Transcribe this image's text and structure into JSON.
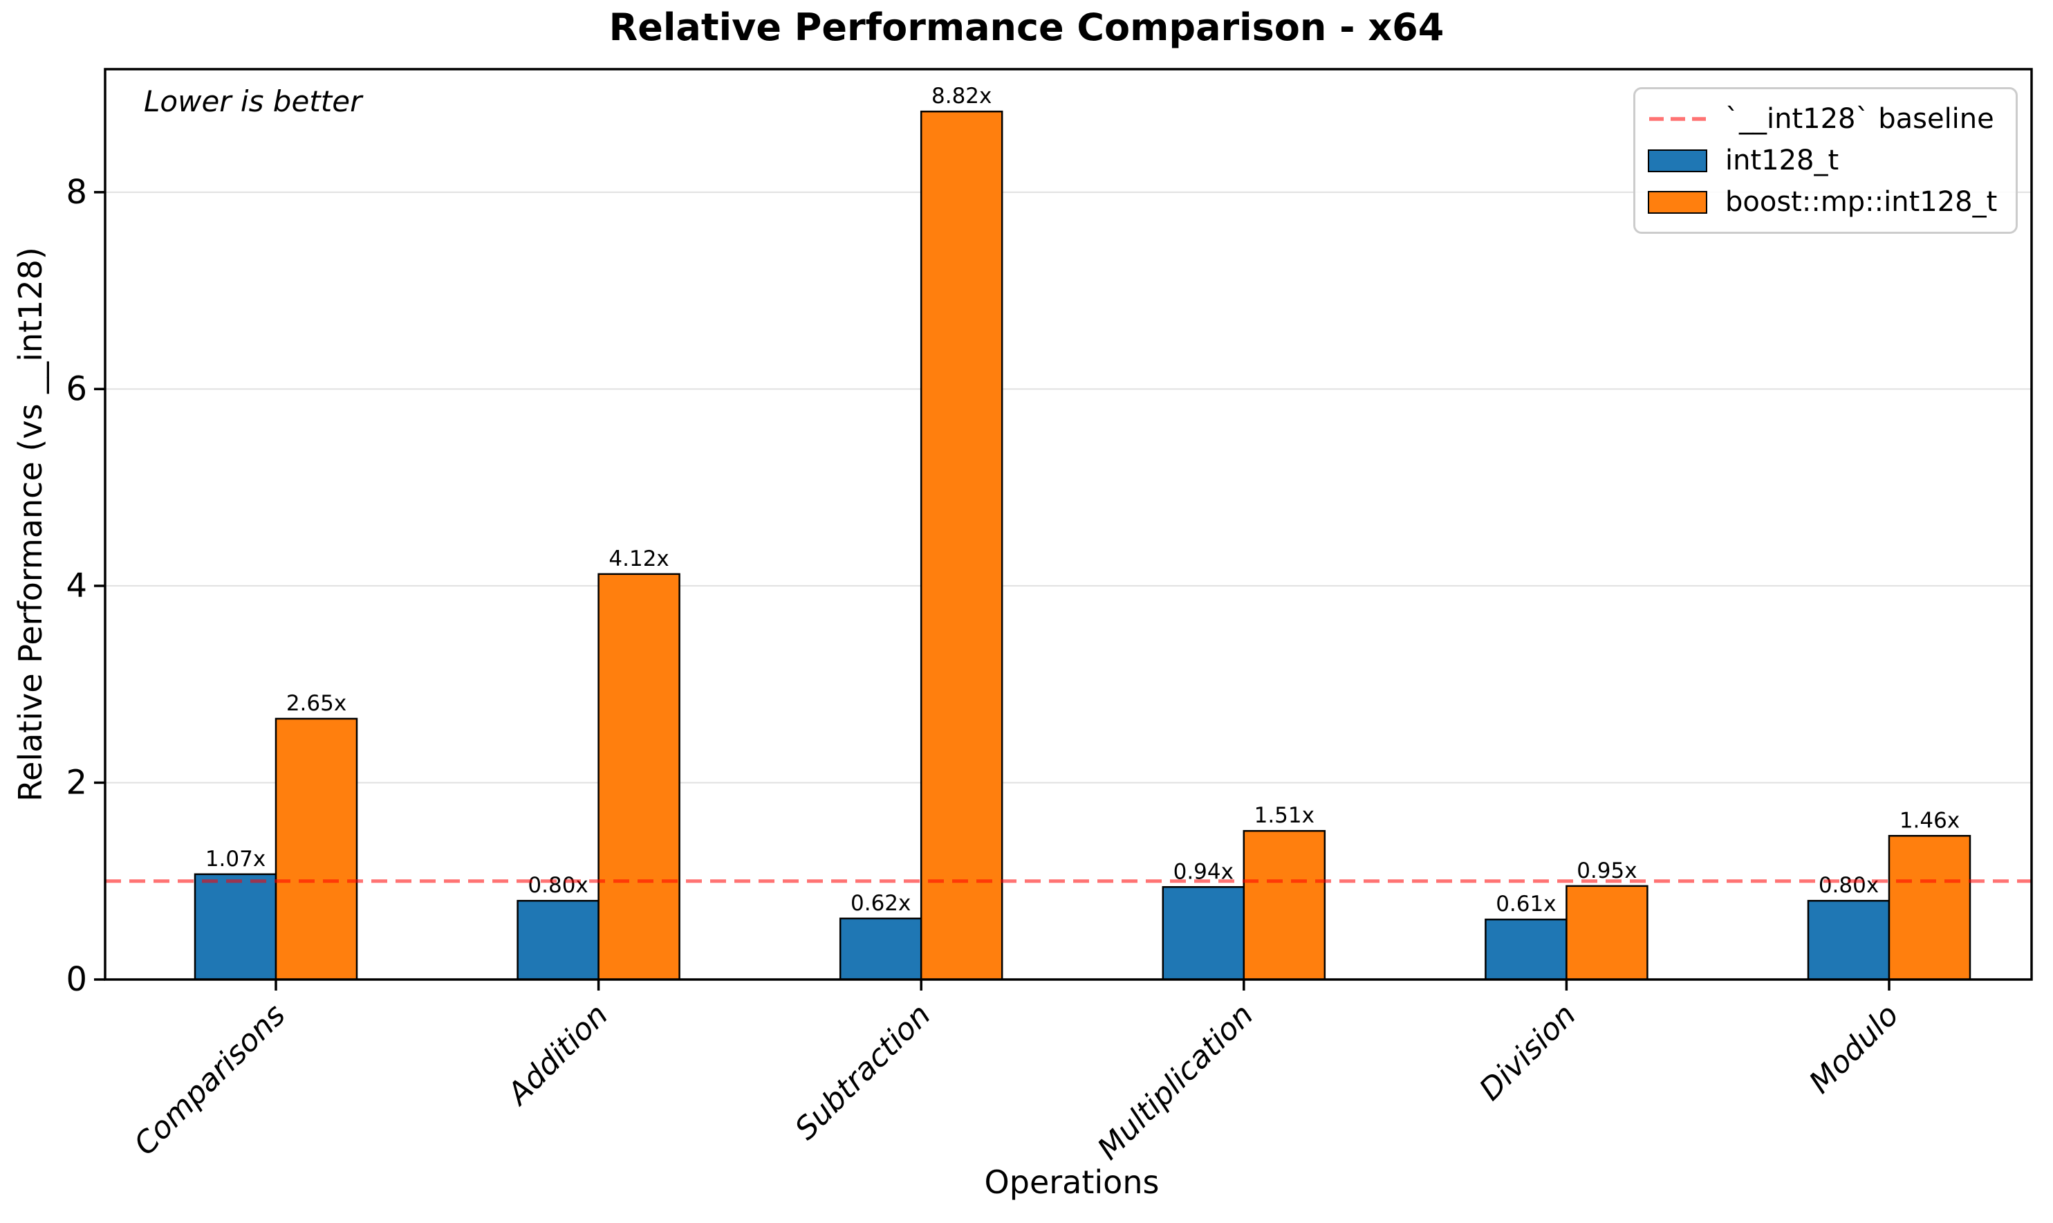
{
  "chart_data": {
    "type": "bar",
    "title": "Relative Performance Comparison - x64",
    "xlabel": "Operations",
    "ylabel": "Relative Performance (vs __int128)",
    "annotation": "Lower is better",
    "categories": [
      "Comparisons",
      "Addition",
      "Subtraction",
      "Multiplication",
      "Division",
      "Modulo"
    ],
    "series": [
      {
        "name": "int128_t",
        "color": "#1f77b4",
        "values": [
          1.07,
          0.8,
          0.62,
          0.94,
          0.61,
          0.8
        ]
      },
      {
        "name": "boost::mp::int128_t",
        "color": "#ff7f0e",
        "values": [
          2.65,
          4.12,
          8.82,
          1.51,
          0.95,
          1.46
        ]
      }
    ],
    "bar_labels": [
      [
        "1.07x",
        "0.80x",
        "0.62x",
        "0.94x",
        "0.61x",
        "0.80x"
      ],
      [
        "2.65x",
        "4.12x",
        "8.82x",
        "1.51x",
        "0.95x",
        "1.46x"
      ]
    ],
    "baseline": {
      "value": 1.0,
      "label": "`__int128` baseline",
      "color": "#ff0000",
      "opacity": 0.55,
      "style": "dashed"
    },
    "yticks": [
      0,
      2,
      4,
      6,
      8
    ],
    "ytick_labels": [
      "0",
      "2",
      "4",
      "6",
      "8"
    ],
    "ylim": [
      0,
      9.25
    ],
    "grid": true,
    "grid_color": "#e0e0e0",
    "bar_edge_color": "#000000",
    "legend_position": "upper right"
  }
}
